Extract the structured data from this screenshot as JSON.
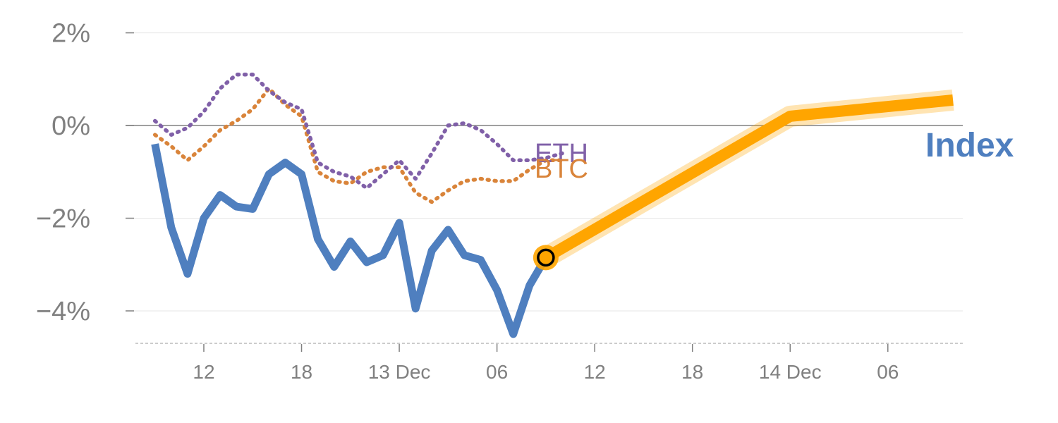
{
  "chart_data": {
    "type": "line",
    "y_ticks": [
      {
        "value": 2,
        "label": "2%"
      },
      {
        "value": 0,
        "label": "0%"
      },
      {
        "value": -2,
        "label": "−2%"
      },
      {
        "value": -4,
        "label": "−4%"
      }
    ],
    "ylim": [
      -4.7,
      2.1
    ],
    "x_ticks": [
      {
        "index": 3,
        "label": "12"
      },
      {
        "index": 9,
        "label": "18"
      },
      {
        "index": 15,
        "label": "13 Dec"
      },
      {
        "index": 21,
        "label": "06"
      },
      {
        "index": 27,
        "label": "12"
      },
      {
        "index": 33,
        "label": "18"
      },
      {
        "index": 39,
        "label": "14 Dec"
      },
      {
        "index": 45,
        "label": "06"
      }
    ],
    "x_range": [
      -1.2,
      49.6
    ],
    "series": [
      {
        "name": "Index",
        "color": "#4f7fbf",
        "style": "solid",
        "x": [
          0,
          1,
          2,
          3,
          4,
          5,
          6,
          7,
          8,
          9,
          10,
          11,
          12,
          13,
          14,
          15,
          16,
          17,
          18,
          19,
          20,
          21,
          22,
          23,
          24
        ],
        "values": [
          -0.4,
          -2.2,
          -3.2,
          -2.0,
          -1.5,
          -1.75,
          -1.8,
          -1.05,
          -0.8,
          -1.05,
          -2.45,
          -3.05,
          -2.5,
          -2.95,
          -2.8,
          -2.1,
          -3.95,
          -2.7,
          -2.25,
          -2.8,
          -2.9,
          -3.55,
          -4.5,
          -3.45,
          -2.85
        ]
      },
      {
        "name": "BTC",
        "color": "#d9843a",
        "style": "dotted",
        "x": [
          0,
          1,
          2,
          3,
          4,
          5,
          6,
          7,
          8,
          9,
          10,
          11,
          12,
          13,
          14,
          15,
          16,
          17,
          18,
          19,
          20,
          21,
          22,
          23,
          24,
          25
        ],
        "values": [
          -0.2,
          -0.45,
          -0.75,
          -0.45,
          -0.1,
          0.1,
          0.35,
          0.8,
          0.45,
          0.2,
          -1.0,
          -1.2,
          -1.25,
          -1.0,
          -0.9,
          -0.9,
          -1.45,
          -1.65,
          -1.4,
          -1.2,
          -1.15,
          -1.2,
          -1.2,
          -0.95,
          -0.75,
          -0.75
        ]
      },
      {
        "name": "ETH",
        "color": "#8060a8",
        "style": "dotted",
        "x": [
          0,
          1,
          2,
          3,
          4,
          5,
          6,
          7,
          8,
          9,
          10,
          11,
          12,
          13,
          14,
          15,
          16,
          17,
          18,
          19,
          20,
          21,
          22,
          23,
          24,
          25
        ],
        "values": [
          0.1,
          -0.2,
          -0.05,
          0.3,
          0.8,
          1.1,
          1.1,
          0.75,
          0.5,
          0.35,
          -0.8,
          -1.0,
          -1.1,
          -1.35,
          -1.05,
          -0.75,
          -1.15,
          -0.6,
          0.0,
          0.05,
          -0.1,
          -0.4,
          -0.75,
          -0.75,
          -0.7,
          -0.6
        ]
      }
    ],
    "forecast": {
      "color": "#ffa500",
      "x": [
        24,
        39,
        49
      ],
      "values": [
        -2.85,
        0.2,
        0.55
      ]
    },
    "marker": {
      "x": 24,
      "value": -2.85,
      "fill": "#ffa500",
      "stroke": "#000000"
    },
    "label_index": "Index",
    "label_eth": "ETH",
    "label_btc": "BTC"
  }
}
